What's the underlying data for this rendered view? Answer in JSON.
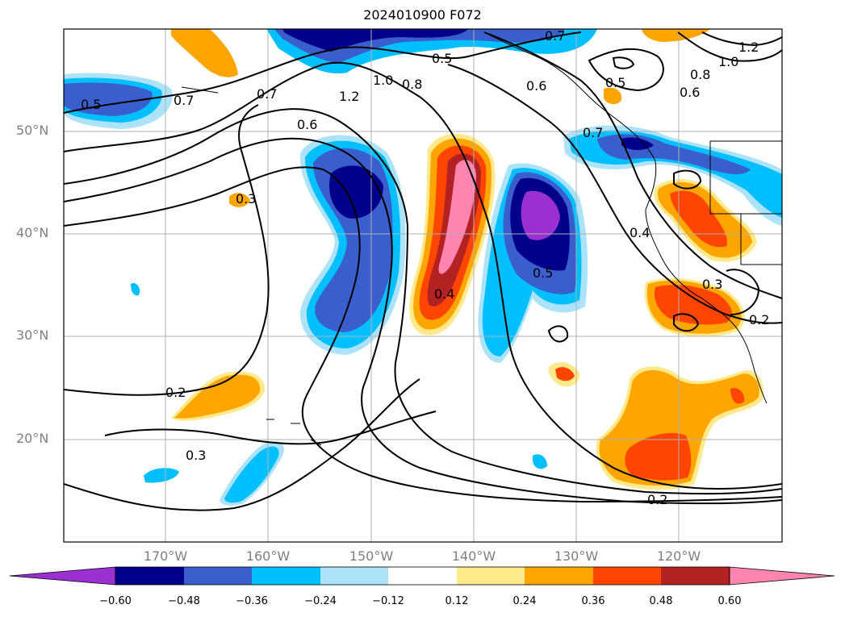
{
  "title": "2024010900 F072",
  "map": {
    "lat_labels": [
      "50°N",
      "40°N",
      "30°N",
      "20°N"
    ],
    "lon_labels": [
      "170°W",
      "160°W",
      "150°W",
      "140°W",
      "130°W",
      "120°W"
    ],
    "contour_labels": [
      "0.5",
      "0.7",
      "1.2",
      "1.0",
      "0.8",
      "0.5",
      "0.6",
      "0.7",
      "0.6",
      "0.3",
      "0.5",
      "0.7",
      "0.8",
      "0.6",
      "1.0",
      "1.2",
      "0.7",
      "0.4",
      "0.5",
      "0.3",
      "0.2",
      "0.2",
      "0.3",
      "0.2",
      "0.4"
    ],
    "colorbar": {
      "ticks": [
        "−0.60",
        "−0.48",
        "−0.36",
        "−0.24",
        "−0.12",
        "0.12",
        "0.24",
        "0.36",
        "0.48",
        "0.60"
      ],
      "colors": [
        "#9b30d0",
        "#00008b",
        "#3a5fcd",
        "#00bfff",
        "#ade3fa",
        "#ffffff",
        "#ffe98a",
        "#ffa500",
        "#ff4500",
        "#b22222",
        "#ff85b0",
        "#ff85b0"
      ]
    },
    "palette": {
      "violet": "#9b30d0",
      "navy": "#00008b",
      "royal": "#3a5fcd",
      "sky": "#00bfff",
      "pale": "#ade3fa",
      "cream": "#ffe98a",
      "orange": "#ffa500",
      "redorange": "#ff4500",
      "firebrick": "#b22222",
      "pink": "#ff85b0"
    }
  }
}
